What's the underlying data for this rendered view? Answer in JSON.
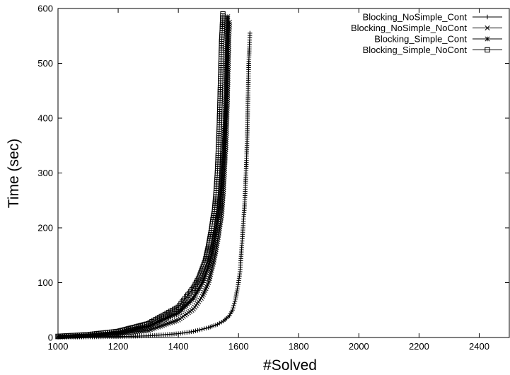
{
  "chart_data": {
    "type": "line",
    "title": "",
    "xlabel": "#Solved",
    "ylabel": "Time (sec)",
    "xlim": [
      1000,
      2500
    ],
    "ylim": [
      0,
      600
    ],
    "x_ticks": [
      1000,
      1200,
      1400,
      1600,
      1800,
      2000,
      2200,
      2400
    ],
    "y_ticks": [
      0,
      100,
      200,
      300,
      400,
      500,
      600
    ],
    "grid": false,
    "legend_position": "top-right",
    "series": [
      {
        "name": "Blocking_NoSimple_Cont",
        "marker": "plus",
        "points": [
          [
            1000,
            0.5
          ],
          [
            1100,
            1
          ],
          [
            1200,
            1.6
          ],
          [
            1300,
            3
          ],
          [
            1400,
            7
          ],
          [
            1450,
            11
          ],
          [
            1500,
            18
          ],
          [
            1530,
            24
          ],
          [
            1550,
            30
          ],
          [
            1570,
            40
          ],
          [
            1580,
            50
          ],
          [
            1590,
            70
          ],
          [
            1600,
            100
          ],
          [
            1605,
            120
          ],
          [
            1610,
            160
          ],
          [
            1615,
            200
          ],
          [
            1620,
            240
          ],
          [
            1625,
            300
          ],
          [
            1628,
            350
          ],
          [
            1630,
            400
          ],
          [
            1632,
            450
          ],
          [
            1634,
            500
          ],
          [
            1636,
            530
          ],
          [
            1638,
            555
          ]
        ]
      },
      {
        "name": "Blocking_NoSimple_NoCont",
        "marker": "x",
        "points": [
          [
            1000,
            1
          ],
          [
            1100,
            2.5
          ],
          [
            1200,
            6
          ],
          [
            1300,
            13
          ],
          [
            1400,
            32
          ],
          [
            1450,
            52
          ],
          [
            1480,
            75
          ],
          [
            1500,
            100
          ],
          [
            1520,
            145
          ],
          [
            1530,
            175
          ],
          [
            1540,
            210
          ],
          [
            1545,
            230
          ],
          [
            1550,
            270
          ],
          [
            1555,
            320
          ],
          [
            1558,
            350
          ],
          [
            1560,
            380
          ],
          [
            1562,
            410
          ],
          [
            1564,
            450
          ],
          [
            1566,
            500
          ],
          [
            1568,
            550
          ],
          [
            1570,
            575
          ]
        ]
      },
      {
        "name": "Blocking_Simple_Cont",
        "marker": "star",
        "points": [
          [
            1000,
            1.5
          ],
          [
            1100,
            4
          ],
          [
            1200,
            9
          ],
          [
            1300,
            20
          ],
          [
            1400,
            45
          ],
          [
            1450,
            72
          ],
          [
            1480,
            100
          ],
          [
            1500,
            130
          ],
          [
            1510,
            150
          ],
          [
            1520,
            180
          ],
          [
            1530,
            215
          ],
          [
            1540,
            260
          ],
          [
            1545,
            300
          ],
          [
            1550,
            340
          ],
          [
            1555,
            400
          ],
          [
            1558,
            450
          ],
          [
            1560,
            500
          ],
          [
            1562,
            550
          ],
          [
            1564,
            585
          ]
        ]
      },
      {
        "name": "Blocking_Simple_NoCont",
        "marker": "square",
        "points": [
          [
            1000,
            2
          ],
          [
            1100,
            5
          ],
          [
            1200,
            11
          ],
          [
            1300,
            25
          ],
          [
            1400,
            55
          ],
          [
            1450,
            90
          ],
          [
            1470,
            110
          ],
          [
            1490,
            140
          ],
          [
            1500,
            165
          ],
          [
            1510,
            195
          ],
          [
            1515,
            215
          ],
          [
            1520,
            230
          ],
          [
            1525,
            260
          ],
          [
            1530,
            300
          ],
          [
            1533,
            340
          ],
          [
            1536,
            380
          ],
          [
            1538,
            420
          ],
          [
            1540,
            460
          ],
          [
            1542,
            500
          ],
          [
            1544,
            540
          ],
          [
            1546,
            560
          ],
          [
            1548,
            590
          ]
        ]
      }
    ]
  }
}
